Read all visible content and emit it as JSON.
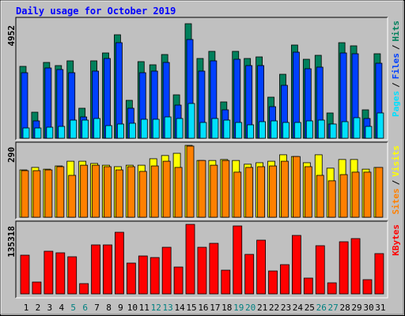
{
  "chart_data": [
    {
      "type": "bar",
      "title": "Daily usage for October 2019",
      "ylim": [
        0,
        4952
      ],
      "yticks": [
        4952
      ],
      "legend_separator": "/",
      "series": [
        {
          "name": "Hits",
          "color": "#00805c",
          "values": [
            3108,
            1127,
            3278,
            3142,
            3347,
            1298,
            3347,
            3688,
            4474,
            1639,
            3313,
            3176,
            3620,
            1878,
            4952,
            3449,
            3757,
            1571,
            3757,
            3449,
            3517,
            1776,
            2766,
            4030,
            3415,
            3586,
            1093,
            4132,
            3996,
            1229,
            3654
          ]
        },
        {
          "name": "Files",
          "color": "#0040ff",
          "values": [
            2834,
            751,
            3039,
            2971,
            2834,
            922,
            2903,
            3449,
            4132,
            1298,
            2834,
            2903,
            3278,
            1434,
            4269,
            2903,
            3347,
            1229,
            3415,
            3142,
            3142,
            1366,
            2288,
            3722,
            3005,
            3074,
            615,
            3688,
            3654,
            854,
            3244
          ]
        },
        {
          "name": "Pages",
          "color": "#00e0ff",
          "values": [
            444,
            444,
            478,
            512,
            785,
            785,
            854,
            546,
            615,
            649,
            820,
            820,
            922,
            854,
            1503,
            683,
            854,
            785,
            683,
            581,
            717,
            751,
            683,
            683,
            751,
            785,
            615,
            717,
            888,
            512,
            1093
          ]
        }
      ]
    },
    {
      "type": "bar",
      "ylim": [
        0,
        290
      ],
      "yticks": [
        290
      ],
      "legend_separator": "/",
      "series": [
        {
          "name": "Visits",
          "color": "#ffff00",
          "values": [
            191,
            201,
            194,
            207,
            226,
            226,
            217,
            210,
            204,
            210,
            210,
            236,
            249,
            258,
            290,
            229,
            229,
            233,
            229,
            214,
            220,
            226,
            252,
            245,
            220,
            252,
            198,
            233,
            233,
            194,
            201
          ]
        },
        {
          "name": "Sites",
          "color": "#ff8000",
          "values": [
            188,
            188,
            191,
            204,
            169,
            210,
            210,
            204,
            191,
            204,
            185,
            207,
            226,
            201,
            287,
            229,
            210,
            229,
            182,
            201,
            204,
            207,
            226,
            245,
            204,
            169,
            147,
            172,
            182,
            182,
            201
          ]
        }
      ]
    },
    {
      "type": "bar",
      "ylim": [
        0,
        135318
      ],
      "yticks": [
        135318
      ],
      "categories": [
        "1",
        "2",
        "3",
        "4",
        "5",
        "6",
        "7",
        "8",
        "9",
        "10",
        "11",
        "12",
        "13",
        "14",
        "15",
        "16",
        "17",
        "18",
        "19",
        "20",
        "21",
        "22",
        "23",
        "24",
        "25",
        "26",
        "27",
        "28",
        "29",
        "30",
        "31"
      ],
      "category_colors": [
        "#000000",
        "#000000",
        "#000000",
        "#000000",
        "#008080",
        "#008080",
        "#000000",
        "#000000",
        "#000000",
        "#000000",
        "#000000",
        "#008080",
        "#008080",
        "#000000",
        "#000000",
        "#000000",
        "#000000",
        "#000000",
        "#008080",
        "#008080",
        "#000000",
        "#000000",
        "#000000",
        "#000000",
        "#000000",
        "#008080",
        "#008080",
        "#000000",
        "#000000",
        "#000000",
        "#000000"
      ],
      "series": [
        {
          "name": "KBytes",
          "color": "#ff0000",
          "values": [
            75347,
            23066,
            83036,
            79960,
            72272,
            19990,
            95337,
            95337,
            119941,
            59970,
            73810,
            70734,
            90724,
            52282,
            135318,
            90724,
            98413,
            46131,
            132242,
            76885,
            104564,
            44593,
            56895,
            113790,
            30754,
            93800,
            21528,
            101488,
            107639,
            27679,
            78423
          ]
        }
      ]
    }
  ]
}
